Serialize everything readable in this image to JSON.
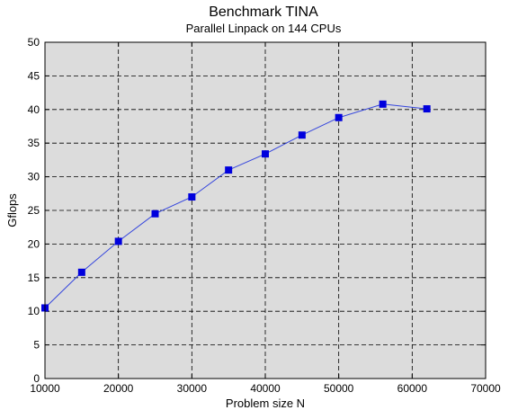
{
  "chart_data": {
    "type": "line",
    "title": "Benchmark TINA",
    "subtitle": "Parallel Linpack on 144 CPUs",
    "xlabel": "Problem size N",
    "ylabel": "Gflops",
    "xlim": [
      10000,
      70000
    ],
    "ylim": [
      0,
      50
    ],
    "x_ticks": [
      10000,
      20000,
      30000,
      40000,
      50000,
      60000,
      70000
    ],
    "y_ticks": [
      0,
      5,
      10,
      15,
      20,
      25,
      30,
      35,
      40,
      45,
      50
    ],
    "grid": true,
    "grid_style": "dashed",
    "legend": "none",
    "colors": {
      "plot_background": "#dcdcdc",
      "series_line": "#3344dd",
      "marker": "#0000dd",
      "grid": "#000000",
      "frame": "#000000"
    },
    "series": [
      {
        "marker": "square",
        "x": [
          10000,
          15000,
          20000,
          25000,
          30000,
          35000,
          40000,
          45000,
          50000,
          56000,
          62000
        ],
        "y": [
          10.5,
          15.8,
          20.4,
          24.5,
          27.0,
          31.0,
          33.4,
          36.2,
          38.8,
          40.8,
          40.1
        ]
      }
    ]
  }
}
